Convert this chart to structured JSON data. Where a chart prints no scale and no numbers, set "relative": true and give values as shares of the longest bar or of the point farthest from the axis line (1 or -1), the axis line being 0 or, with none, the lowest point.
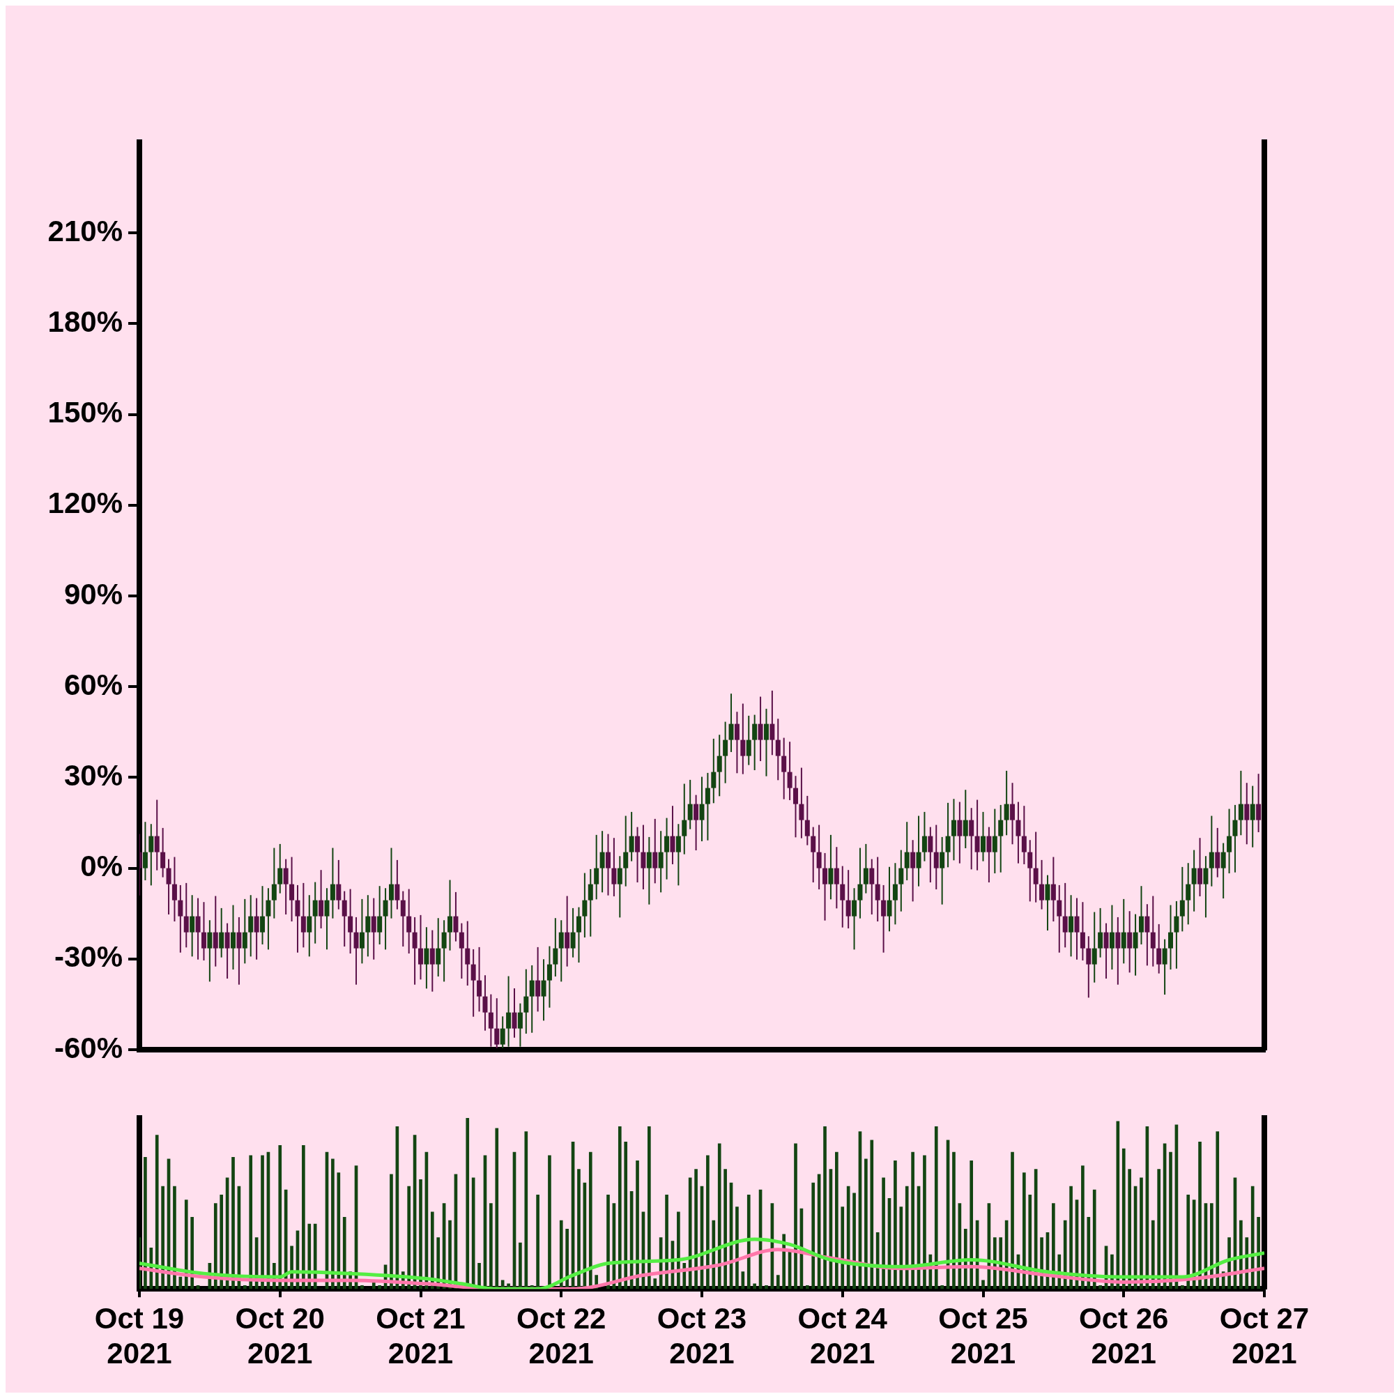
{
  "chart_data": [
    {
      "type": "candlestick",
      "tick_labels": "y",
      "xlim": [
        "2021-10-19",
        "2021-10-27"
      ],
      "ylim": [
        -60,
        240
      ],
      "yticks": [
        {
          "value": -60,
          "label": "-60%"
        },
        {
          "value": -30,
          "label": "-30%"
        },
        {
          "value": 0,
          "label": "0%"
        },
        {
          "value": 30,
          "label": "30%"
        },
        {
          "value": 60,
          "label": "60%"
        },
        {
          "value": 90,
          "label": "90%"
        },
        {
          "value": 120,
          "label": "120%"
        },
        {
          "value": 150,
          "label": "150%"
        },
        {
          "value": 180,
          "label": "180%"
        },
        {
          "value": 210,
          "label": "210%"
        }
      ],
      "x": [
        "2021-10-19T00:00",
        "2021-10-19T01:00",
        "2021-10-19T02:00",
        "2021-10-19T03:00",
        "2021-10-19T04:00",
        "2021-10-19T05:00",
        "2021-10-19T06:00",
        "2021-10-19T07:00",
        "2021-10-19T08:00",
        "2021-10-19T09:00",
        "2021-10-19T10:00",
        "2021-10-19T11:00",
        "2021-10-19T12:00",
        "2021-10-19T13:00",
        "2021-10-19T14:00",
        "2021-10-19T15:00",
        "2021-10-19T16:00",
        "2021-10-19T17:00",
        "2021-10-19T18:00",
        "2021-10-19T19:00",
        "2021-10-19T20:00",
        "2021-10-19T21:00",
        "2021-10-19T22:00",
        "2021-10-19T23:00",
        "2021-10-20T00:00",
        "2021-10-20T01:00",
        "2021-10-20T02:00",
        "2021-10-20T03:00",
        "2021-10-20T04:00",
        "2021-10-20T05:00",
        "2021-10-20T06:00",
        "2021-10-20T07:00",
        "2021-10-20T08:00",
        "2021-10-20T09:00",
        "2021-10-20T10:00",
        "2021-10-20T11:00",
        "2021-10-20T12:00",
        "2021-10-20T13:00",
        "2021-10-20T14:00",
        "2021-10-20T15:00",
        "2021-10-20T16:00",
        "2021-10-20T17:00",
        "2021-10-20T18:00",
        "2021-10-20T19:00",
        "2021-10-20T20:00",
        "2021-10-20T21:00",
        "2021-10-20T22:00",
        "2021-10-20T23:00",
        "2021-10-21T00:00",
        "2021-10-21T01:00",
        "2021-10-21T02:00",
        "2021-10-21T03:00",
        "2021-10-21T04:00",
        "2021-10-21T05:00",
        "2021-10-21T06:00",
        "2021-10-21T07:00",
        "2021-10-21T08:00",
        "2021-10-21T09:00",
        "2021-10-21T10:00",
        "2021-10-21T11:00",
        "2021-10-21T12:00",
        "2021-10-21T13:00",
        "2021-10-21T14:00",
        "2021-10-21T15:00",
        "2021-10-21T16:00",
        "2021-10-21T17:00",
        "2021-10-21T18:00",
        "2021-10-21T19:00",
        "2021-10-21T20:00",
        "2021-10-21T21:00",
        "2021-10-21T22:00",
        "2021-10-21T23:00",
        "2021-10-22T00:00",
        "2021-10-22T01:00",
        "2021-10-22T02:00",
        "2021-10-22T03:00",
        "2021-10-22T04:00",
        "2021-10-22T05:00",
        "2021-10-22T06:00",
        "2021-10-22T07:00",
        "2021-10-22T08:00",
        "2021-10-22T09:00",
        "2021-10-22T10:00",
        "2021-10-22T11:00",
        "2021-10-22T12:00",
        "2021-10-22T13:00",
        "2021-10-22T14:00",
        "2021-10-22T15:00",
        "2021-10-22T16:00",
        "2021-10-22T17:00",
        "2021-10-22T18:00",
        "2021-10-22T19:00",
        "2021-10-22T20:00",
        "2021-10-22T21:00",
        "2021-10-22T22:00",
        "2021-10-22T23:00",
        "2021-10-23T00:00",
        "2021-10-23T01:00",
        "2021-10-23T02:00",
        "2021-10-23T03:00",
        "2021-10-23T04:00",
        "2021-10-23T05:00",
        "2021-10-23T06:00",
        "2021-10-23T07:00",
        "2021-10-23T08:00",
        "2021-10-23T09:00",
        "2021-10-23T10:00",
        "2021-10-23T11:00",
        "2021-10-23T12:00",
        "2021-10-23T13:00",
        "2021-10-23T14:00",
        "2021-10-23T15:00",
        "2021-10-23T16:00",
        "2021-10-23T17:00",
        "2021-10-23T18:00",
        "2021-10-23T19:00",
        "2021-10-23T20:00",
        "2021-10-23T21:00",
        "2021-10-23T22:00",
        "2021-10-23T23:00",
        "2021-10-24T00:00",
        "2021-10-24T01:00",
        "2021-10-24T02:00",
        "2021-10-24T03:00",
        "2021-10-24T04:00",
        "2021-10-24T05:00",
        "2021-10-24T06:00",
        "2021-10-24T07:00",
        "2021-10-24T08:00",
        "2021-10-24T09:00",
        "2021-10-24T10:00",
        "2021-10-24T11:00",
        "2021-10-24T12:00",
        "2021-10-24T13:00",
        "2021-10-24T14:00",
        "2021-10-24T15:00",
        "2021-10-24T16:00",
        "2021-10-24T17:00",
        "2021-10-24T18:00",
        "2021-10-24T19:00",
        "2021-10-24T20:00",
        "2021-10-24T21:00",
        "2021-10-24T22:00",
        "2021-10-24T23:00",
        "2021-10-25T00:00",
        "2021-10-25T01:00",
        "2021-10-25T02:00",
        "2021-10-25T03:00",
        "2021-10-25T04:00",
        "2021-10-25T05:00",
        "2021-10-25T06:00",
        "2021-10-25T07:00",
        "2021-10-25T08:00",
        "2021-10-25T09:00",
        "2021-10-25T10:00",
        "2021-10-25T11:00",
        "2021-10-25T12:00",
        "2021-10-25T13:00",
        "2021-10-25T14:00",
        "2021-10-25T15:00",
        "2021-10-25T16:00",
        "2021-10-25T17:00",
        "2021-10-25T18:00",
        "2021-10-25T19:00",
        "2021-10-25T20:00",
        "2021-10-25T21:00",
        "2021-10-25T22:00",
        "2021-10-25T23:00",
        "2021-10-26T00:00",
        "2021-10-26T01:00",
        "2021-10-26T02:00",
        "2021-10-26T03:00",
        "2021-10-26T04:00",
        "2021-10-26T05:00",
        "2021-10-26T06:00",
        "2021-10-26T07:00",
        "2021-10-26T08:00",
        "2021-10-26T09:00",
        "2021-10-26T10:00",
        "2021-10-26T11:00",
        "2021-10-26T12:00",
        "2021-10-26T13:00",
        "2021-10-26T14:00",
        "2021-10-26T15:00",
        "2021-10-26T16:00",
        "2021-10-26T17:00",
        "2021-10-26T18:00",
        "2021-10-26T19:00",
        "2021-10-26T20:00",
        "2021-10-26T21:00",
        "2021-10-26T22:00",
        "2021-10-26T23:00"
      ],
      "ohlc": [
        [
          5.3,
          11.3,
          -9,
          0
        ],
        [
          0,
          15.3,
          -4,
          5.3
        ],
        [
          5.3,
          14.6,
          -5.7,
          10.6
        ],
        [
          10.6,
          22.6,
          -0.7,
          5.3
        ],
        [
          5.3,
          13.3,
          -3,
          0
        ],
        [
          0,
          3,
          -15.3,
          -5.3
        ],
        [
          -5.3,
          3.7,
          -17.6,
          -10.6
        ],
        [
          -10.6,
          -5.6,
          -27.9,
          -15.9
        ],
        [
          -15.9,
          -4.9,
          -26.2,
          -21.2
        ],
        [
          -21.2,
          -8.9,
          -29.2,
          -15.9
        ],
        [
          -15.9,
          -9.9,
          -30.2,
          -21.2
        ],
        [
          -21.2,
          -11.2,
          -30.5,
          -26.5
        ],
        [
          -26.5,
          -17.2,
          -37.5,
          -21.2
        ],
        [
          -21.2,
          -9.2,
          -32.5,
          -26.5
        ],
        [
          -26.5,
          -13.2,
          -29.5,
          -21.2
        ],
        [
          -21.2,
          -18.2,
          -36.5,
          -26.5
        ],
        [
          -26.5,
          -12.2,
          -33.5,
          -21.2
        ],
        [
          -21.2,
          -16.2,
          -38.5,
          -26.5
        ],
        [
          -26.5,
          -10.2,
          -31.5,
          -21.2
        ],
        [
          -21.2,
          -8.9,
          -29.2,
          -15.9
        ],
        [
          -15.9,
          -9.9,
          -30.2,
          -21.2
        ],
        [
          -21.2,
          -5.9,
          -25.2,
          -15.9
        ],
        [
          -15.9,
          -6.6,
          -26.9,
          -10.6
        ],
        [
          -10.6,
          6.7,
          -16.6,
          -5.3
        ],
        [
          -5.3,
          8,
          -8.3,
          0
        ],
        [
          0,
          3,
          -15.3,
          -5.3
        ],
        [
          -5.3,
          3.7,
          -17.6,
          -10.6
        ],
        [
          -10.6,
          -5.6,
          -27.9,
          -15.9
        ],
        [
          -15.9,
          -4.9,
          -26.2,
          -21.2
        ],
        [
          -21.2,
          -8.9,
          -29.2,
          -15.9
        ],
        [
          -15.9,
          -4.6,
          -24.9,
          -10.6
        ],
        [
          -10.6,
          -0.6,
          -19.9,
          -15.9
        ],
        [
          -15.9,
          -6.6,
          -26.9,
          -10.6
        ],
        [
          -10.6,
          6.7,
          -16.6,
          -5.3
        ],
        [
          -5.3,
          2.7,
          -13.6,
          -10.6
        ],
        [
          -10.6,
          -7.6,
          -25.9,
          -15.9
        ],
        [
          -15.9,
          -6.9,
          -28.2,
          -21.2
        ],
        [
          -21.2,
          -16.2,
          -38.5,
          -26.5
        ],
        [
          -26.5,
          -10.2,
          -31.5,
          -21.2
        ],
        [
          -21.2,
          -8.9,
          -29.2,
          -15.9
        ],
        [
          -15.9,
          -9.9,
          -30.2,
          -21.2
        ],
        [
          -21.2,
          -5.9,
          -25.2,
          -15.9
        ],
        [
          -15.9,
          -6.6,
          -26.9,
          -10.6
        ],
        [
          -10.6,
          6.7,
          -16.6,
          -5.3
        ],
        [
          -5.3,
          2.7,
          -13.6,
          -10.6
        ],
        [
          -10.6,
          -7.6,
          -25.9,
          -15.9
        ],
        [
          -15.9,
          -6.9,
          -28.2,
          -21.2
        ],
        [
          -21.2,
          -16.2,
          -38.5,
          -26.5
        ],
        [
          -26.5,
          -15.5,
          -36.8,
          -31.8
        ],
        [
          -31.8,
          -19.5,
          -39.8,
          -26.5
        ],
        [
          -26.5,
          -20.5,
          -40.8,
          -31.8
        ],
        [
          -31.8,
          -16.5,
          -35.8,
          -26.5
        ],
        [
          -26.5,
          -17.2,
          -37.5,
          -21.2
        ],
        [
          -21.2,
          -3.9,
          -27.2,
          -15.9
        ],
        [
          -15.9,
          -7.9,
          -24.2,
          -21.2
        ],
        [
          -21.2,
          -18.2,
          -36.5,
          -26.5
        ],
        [
          -26.5,
          -17.5,
          -38.8,
          -31.8
        ],
        [
          -31.8,
          -26.8,
          -49.1,
          -37.1
        ],
        [
          -37.1,
          -26.1,
          -47.4,
          -42.4
        ],
        [
          -42.4,
          -35.4,
          -53.7,
          -47.7
        ],
        [
          -47.7,
          -41.7,
          -59,
          -53
        ],
        [
          -53,
          -43,
          -59.5,
          -58.3
        ],
        [
          -58.3,
          -49,
          -59.5,
          -53
        ],
        [
          -53,
          -35.7,
          -59,
          -47.7
        ],
        [
          -47.7,
          -39.7,
          -56,
          -53
        ],
        [
          -53,
          -44.7,
          -59,
          -47.7
        ],
        [
          -47.7,
          -33.4,
          -54.7,
          -42.4
        ],
        [
          -42.4,
          -32.1,
          -54.4,
          -37.1
        ],
        [
          -37.1,
          -26.1,
          -47.4,
          -42.4
        ],
        [
          -42.4,
          -30.1,
          -50.4,
          -37.1
        ],
        [
          -37.1,
          -25.8,
          -46.1,
          -31.8
        ],
        [
          -31.8,
          -16.5,
          -35.8,
          -26.5
        ],
        [
          -26.5,
          -17.2,
          -37.5,
          -21.2
        ],
        [
          -21.2,
          -9.2,
          -32.5,
          -26.5
        ],
        [
          -26.5,
          -13.2,
          -29.5,
          -21.2
        ],
        [
          -21.2,
          -12.9,
          -31.2,
          -15.9
        ],
        [
          -15.9,
          -1.6,
          -22.9,
          -10.6
        ],
        [
          -10.6,
          -0.3,
          -22.6,
          -5.3
        ],
        [
          -5.3,
          11,
          -10.3,
          0
        ],
        [
          0,
          12.3,
          -8,
          5.3
        ],
        [
          5.3,
          11.3,
          -9,
          0
        ],
        [
          0,
          10,
          -9.3,
          -5.3
        ],
        [
          -5.3,
          4,
          -16.3,
          0
        ],
        [
          0,
          17.3,
          -6,
          5.3
        ],
        [
          5.3,
          18.6,
          2.3,
          10.6
        ],
        [
          10.6,
          13.6,
          -4.7,
          5.3
        ],
        [
          5.3,
          14.3,
          -7,
          0
        ],
        [
          0,
          10.3,
          -12,
          5.3
        ],
        [
          5.3,
          16.3,
          -5,
          0
        ],
        [
          0,
          12.3,
          -8,
          5.3
        ],
        [
          5.3,
          16.6,
          -3.7,
          10.6
        ],
        [
          10.6,
          20.6,
          1.3,
          5.3
        ],
        [
          5.3,
          14.6,
          -5.7,
          10.6
        ],
        [
          10.6,
          27.9,
          4.6,
          15.9
        ],
        [
          15.9,
          29.2,
          12.9,
          21.2
        ],
        [
          21.2,
          24.2,
          5.9,
          15.9
        ],
        [
          15.9,
          30.2,
          8.9,
          21.2
        ],
        [
          21.2,
          31.5,
          9.2,
          26.5
        ],
        [
          26.5,
          42.8,
          21.5,
          31.8
        ],
        [
          31.8,
          44.1,
          23.8,
          37.1
        ],
        [
          37.1,
          48.4,
          28.1,
          42.4
        ],
        [
          42.4,
          57.7,
          38.4,
          47.7
        ],
        [
          47.7,
          51.7,
          31.4,
          42.4
        ],
        [
          42.4,
          54.4,
          31.1,
          37.1
        ],
        [
          37.1,
          50.4,
          34.1,
          42.4
        ],
        [
          42.4,
          50.7,
          32.4,
          47.7
        ],
        [
          47.7,
          56.7,
          35.4,
          42.4
        ],
        [
          42.4,
          52.7,
          30.4,
          47.7
        ],
        [
          47.7,
          58.7,
          37.4,
          42.4
        ],
        [
          42.4,
          49.4,
          29.1,
          37.1
        ],
        [
          37.1,
          43.1,
          22.8,
          31.8
        ],
        [
          31.8,
          41.8,
          22.5,
          26.5
        ],
        [
          26.5,
          30.5,
          10.2,
          21.2
        ],
        [
          21.2,
          33.2,
          9.9,
          15.9
        ],
        [
          15.9,
          23.9,
          7.6,
          10.6
        ],
        [
          10.6,
          13.6,
          -4.7,
          5.3
        ],
        [
          5.3,
          14.3,
          -7,
          0
        ],
        [
          0,
          5,
          -17.3,
          -5.3
        ],
        [
          -5.3,
          11,
          -10.3,
          0
        ],
        [
          0,
          7,
          -13.3,
          -5.3
        ],
        [
          -5.3,
          0.7,
          -19.6,
          -10.6
        ],
        [
          -10.6,
          -0.6,
          -19.9,
          -15.9
        ],
        [
          -15.9,
          -6.6,
          -26.9,
          -10.6
        ],
        [
          -10.6,
          6.7,
          -16.6,
          -5.3
        ],
        [
          -5.3,
          8,
          -8.3,
          0
        ],
        [
          0,
          3,
          -15.3,
          -5.3
        ],
        [
          -5.3,
          3.7,
          -17.6,
          -10.6
        ],
        [
          -10.6,
          -5.6,
          -27.9,
          -15.9
        ],
        [
          -15.9,
          0.4,
          -20.9,
          -10.6
        ],
        [
          -10.6,
          1.7,
          -18.6,
          -5.3
        ],
        [
          -5.3,
          6,
          -14.3,
          0
        ],
        [
          0,
          15.3,
          -4,
          5.3
        ],
        [
          5.3,
          9.3,
          -11,
          0
        ],
        [
          0,
          17.3,
          -6,
          5.3
        ],
        [
          5.3,
          18.6,
          2.3,
          10.6
        ],
        [
          10.6,
          13.6,
          -4.7,
          5.3
        ],
        [
          5.3,
          14.3,
          -7,
          0
        ],
        [
          0,
          10.3,
          -12,
          5.3
        ],
        [
          5.3,
          21.6,
          0.3,
          10.6
        ],
        [
          10.6,
          22.9,
          2.6,
          15.9
        ],
        [
          15.9,
          21.9,
          1.6,
          10.6
        ],
        [
          10.6,
          25.9,
          6.6,
          15.9
        ],
        [
          15.9,
          19.9,
          -0.4,
          10.6
        ],
        [
          10.6,
          22.6,
          -0.7,
          5.3
        ],
        [
          5.3,
          18.6,
          2.3,
          10.6
        ],
        [
          10.6,
          13.6,
          -4.7,
          5.3
        ],
        [
          5.3,
          19.6,
          -1.7,
          10.6
        ],
        [
          10.6,
          20.9,
          -1.4,
          15.9
        ],
        [
          15.9,
          32.2,
          10.9,
          21.2
        ],
        [
          21.2,
          28.2,
          7.9,
          15.9
        ],
        [
          15.9,
          21.9,
          1.6,
          10.6
        ],
        [
          10.6,
          20.6,
          1.3,
          5.3
        ],
        [
          5.3,
          9.3,
          -11,
          0
        ],
        [
          0,
          12,
          -11.3,
          -5.3
        ],
        [
          -5.3,
          2.7,
          -13.6,
          -10.6
        ],
        [
          -10.6,
          -2.3,
          -20.6,
          -5.3
        ],
        [
          -5.3,
          3.7,
          -17.6,
          -10.6
        ],
        [
          -10.6,
          -5.6,
          -27.9,
          -15.9
        ],
        [
          -15.9,
          -4.9,
          -26.2,
          -21.2
        ],
        [
          -21.2,
          -8.9,
          -29.2,
          -15.9
        ],
        [
          -15.9,
          -9.9,
          -30.2,
          -21.2
        ],
        [
          -21.2,
          -11.2,
          -30.5,
          -26.5
        ],
        [
          -26.5,
          -22.5,
          -42.8,
          -31.8
        ],
        [
          -31.8,
          -14.5,
          -37.8,
          -26.5
        ],
        [
          -26.5,
          -13.2,
          -29.5,
          -21.2
        ],
        [
          -21.2,
          -18.2,
          -36.5,
          -26.5
        ],
        [
          -26.5,
          -12.2,
          -33.5,
          -21.2
        ],
        [
          -21.2,
          -16.2,
          -38.5,
          -26.5
        ],
        [
          -26.5,
          -10.2,
          -31.5,
          -21.2
        ],
        [
          -21.2,
          -14.2,
          -34.5,
          -26.5
        ],
        [
          -26.5,
          -15.2,
          -35.5,
          -21.2
        ],
        [
          -21.2,
          -5.9,
          -25.2,
          -15.9
        ],
        [
          -15.9,
          -11.9,
          -32.2,
          -21.2
        ],
        [
          -21.2,
          -9.2,
          -32.5,
          -26.5
        ],
        [
          -26.5,
          -18.5,
          -34.8,
          -31.8
        ],
        [
          -31.8,
          -23.5,
          -41.8,
          -26.5
        ],
        [
          -26.5,
          -12.2,
          -33.5,
          -21.2
        ],
        [
          -21.2,
          -10.9,
          -33.2,
          -15.9
        ],
        [
          -15.9,
          0.4,
          -20.9,
          -10.6
        ],
        [
          -10.6,
          1.7,
          -18.6,
          -5.3
        ],
        [
          -5.3,
          6,
          -14.3,
          0
        ],
        [
          0,
          10,
          -9.3,
          -5.3
        ],
        [
          -5.3,
          4,
          -16.3,
          0
        ],
        [
          0,
          17.3,
          -6,
          5.3
        ],
        [
          5.3,
          13.3,
          -3,
          0
        ],
        [
          0,
          8.3,
          -10,
          5.3
        ],
        [
          5.3,
          19.6,
          -1.7,
          10.6
        ],
        [
          10.6,
          20.9,
          -1.4,
          15.9
        ],
        [
          15.9,
          32.2,
          10.9,
          21.2
        ],
        [
          21.2,
          28.2,
          7.9,
          15.9
        ],
        [
          15.9,
          27.2,
          6.9,
          21.2
        ],
        [
          21.2,
          31.2,
          11.9,
          15.9
        ]
      ],
      "colors": [
        "#5a1048",
        "#134512",
        "#134512",
        "#5a1048",
        "#5a1048",
        "#5a1048",
        "#5a1048",
        "#5a1048",
        "#5a1048",
        "#134512",
        "#5a1048",
        "#5a1048",
        "#134512",
        "#5a1048",
        "#134512",
        "#5a1048",
        "#134512",
        "#5a1048",
        "#134512",
        "#134512",
        "#5a1048",
        "#134512",
        "#134512",
        "#134512",
        "#134512",
        "#5a1048",
        "#5a1048",
        "#5a1048",
        "#5a1048",
        "#134512",
        "#134512",
        "#5a1048",
        "#134512",
        "#134512",
        "#5a1048",
        "#5a1048",
        "#5a1048",
        "#5a1048",
        "#134512",
        "#134512",
        "#5a1048",
        "#134512",
        "#134512",
        "#134512",
        "#5a1048",
        "#5a1048",
        "#5a1048",
        "#5a1048",
        "#5a1048",
        "#134512",
        "#5a1048",
        "#134512",
        "#134512",
        "#134512",
        "#5a1048",
        "#5a1048",
        "#5a1048",
        "#5a1048",
        "#5a1048",
        "#5a1048",
        "#5a1048",
        "#5a1048",
        "#134512",
        "#134512",
        "#5a1048",
        "#134512",
        "#134512",
        "#134512",
        "#5a1048",
        "#134512",
        "#134512",
        "#134512",
        "#134512",
        "#5a1048",
        "#134512",
        "#134512",
        "#134512",
        "#134512",
        "#134512",
        "#134512",
        "#5a1048",
        "#5a1048",
        "#134512",
        "#134512",
        "#134512",
        "#5a1048",
        "#5a1048",
        "#134512",
        "#5a1048",
        "#134512",
        "#134512",
        "#5a1048",
        "#134512",
        "#134512",
        "#134512",
        "#5a1048",
        "#134512",
        "#134512",
        "#134512",
        "#134512",
        "#134512",
        "#134512",
        "#5a1048",
        "#5a1048",
        "#134512",
        "#134512",
        "#5a1048",
        "#134512",
        "#5a1048",
        "#5a1048",
        "#5a1048",
        "#5a1048",
        "#5a1048",
        "#5a1048",
        "#5a1048",
        "#5a1048",
        "#5a1048",
        "#5a1048",
        "#134512",
        "#5a1048",
        "#5a1048",
        "#5a1048",
        "#134512",
        "#134512",
        "#134512",
        "#5a1048",
        "#5a1048",
        "#5a1048",
        "#134512",
        "#134512",
        "#134512",
        "#134512",
        "#5a1048",
        "#134512",
        "#134512",
        "#5a1048",
        "#5a1048",
        "#134512",
        "#134512",
        "#134512",
        "#5a1048",
        "#134512",
        "#5a1048",
        "#5a1048",
        "#134512",
        "#5a1048",
        "#134512",
        "#134512",
        "#134512",
        "#5a1048",
        "#5a1048",
        "#5a1048",
        "#5a1048",
        "#5a1048",
        "#5a1048",
        "#134512",
        "#5a1048",
        "#5a1048",
        "#5a1048",
        "#134512",
        "#5a1048",
        "#5a1048",
        "#5a1048",
        "#134512",
        "#134512",
        "#5a1048",
        "#134512",
        "#5a1048",
        "#134512",
        "#5a1048",
        "#134512",
        "#134512",
        "#5a1048",
        "#5a1048",
        "#5a1048",
        "#134512",
        "#134512",
        "#134512",
        "#134512",
        "#134512",
        "#134512",
        "#5a1048",
        "#134512",
        "#134512",
        "#5a1048",
        "#134512",
        "#134512",
        "#134512",
        "#134512",
        "#5a1048",
        "#134512",
        "#5a1048"
      ]
    },
    {
      "type": "bar",
      "relative": true,
      "tick_labels": "x",
      "xlim": [
        "2021-10-19",
        "2021-10-27"
      ],
      "xticks": [
        {
          "value": "2021-10-19",
          "label": "Oct 19\n2021"
        },
        {
          "value": "2021-10-20",
          "label": "Oct 20\n2021"
        },
        {
          "value": "2021-10-21",
          "label": "Oct 21\n2021"
        },
        {
          "value": "2021-10-22",
          "label": "Oct 22\n2021"
        },
        {
          "value": "2021-10-23",
          "label": "Oct 23\n2021"
        },
        {
          "value": "2021-10-24",
          "label": "Oct 24\n2021"
        },
        {
          "value": "2021-10-25",
          "label": "Oct 25\n2021"
        },
        {
          "value": "2021-10-26",
          "label": "Oct 26\n2021"
        },
        {
          "value": "2021-10-27",
          "label": "Oct 27\n2021"
        }
      ],
      "x": [
        "2021-10-19T00:00",
        "2021-10-19T01:00",
        "2021-10-19T02:00",
        "2021-10-19T03:00",
        "2021-10-19T04:00",
        "2021-10-19T05:00",
        "2021-10-19T06:00",
        "2021-10-19T07:00",
        "2021-10-19T08:00",
        "2021-10-19T09:00",
        "2021-10-19T10:00",
        "2021-10-19T11:00",
        "2021-10-19T12:00",
        "2021-10-19T13:00",
        "2021-10-19T14:00",
        "2021-10-19T15:00",
        "2021-10-19T16:00",
        "2021-10-19T17:00",
        "2021-10-19T18:00",
        "2021-10-19T19:00",
        "2021-10-19T20:00",
        "2021-10-19T21:00",
        "2021-10-19T22:00",
        "2021-10-19T23:00",
        "2021-10-20T00:00",
        "2021-10-20T01:00",
        "2021-10-20T02:00",
        "2021-10-20T03:00",
        "2021-10-20T04:00",
        "2021-10-20T05:00",
        "2021-10-20T06:00",
        "2021-10-20T07:00",
        "2021-10-20T08:00",
        "2021-10-20T09:00",
        "2021-10-20T10:00",
        "2021-10-20T11:00",
        "2021-10-20T12:00",
        "2021-10-20T13:00",
        "2021-10-20T14:00",
        "2021-10-20T15:00",
        "2021-10-20T16:00",
        "2021-10-20T17:00",
        "2021-10-20T18:00",
        "2021-10-20T19:00",
        "2021-10-20T20:00",
        "2021-10-20T21:00",
        "2021-10-20T22:00",
        "2021-10-20T23:00",
        "2021-10-21T00:00",
        "2021-10-21T01:00",
        "2021-10-21T02:00",
        "2021-10-21T03:00",
        "2021-10-21T04:00",
        "2021-10-21T05:00",
        "2021-10-21T06:00",
        "2021-10-21T07:00",
        "2021-10-21T08:00",
        "2021-10-21T09:00",
        "2021-10-21T10:00",
        "2021-10-21T11:00",
        "2021-10-21T12:00",
        "2021-10-21T13:00",
        "2021-10-21T14:00",
        "2021-10-21T15:00",
        "2021-10-21T16:00",
        "2021-10-21T17:00",
        "2021-10-21T18:00",
        "2021-10-21T19:00",
        "2021-10-21T20:00",
        "2021-10-21T21:00",
        "2021-10-21T22:00",
        "2021-10-21T23:00",
        "2021-10-22T00:00",
        "2021-10-22T01:00",
        "2021-10-22T02:00",
        "2021-10-22T03:00",
        "2021-10-22T04:00",
        "2021-10-22T05:00",
        "2021-10-22T06:00",
        "2021-10-22T07:00",
        "2021-10-22T08:00",
        "2021-10-22T09:00",
        "2021-10-22T10:00",
        "2021-10-22T11:00",
        "2021-10-22T12:00",
        "2021-10-22T13:00",
        "2021-10-22T14:00",
        "2021-10-22T15:00",
        "2021-10-22T16:00",
        "2021-10-22T17:00",
        "2021-10-22T18:00",
        "2021-10-22T19:00",
        "2021-10-22T20:00",
        "2021-10-22T21:00",
        "2021-10-22T22:00",
        "2021-10-22T23:00",
        "2021-10-23T00:00",
        "2021-10-23T01:00",
        "2021-10-23T02:00",
        "2021-10-23T03:00",
        "2021-10-23T04:00",
        "2021-10-23T05:00",
        "2021-10-23T06:00",
        "2021-10-23T07:00",
        "2021-10-23T08:00",
        "2021-10-23T09:00",
        "2021-10-23T10:00",
        "2021-10-23T11:00",
        "2021-10-23T12:00",
        "2021-10-23T13:00",
        "2021-10-23T14:00",
        "2021-10-23T15:00",
        "2021-10-23T16:00",
        "2021-10-23T17:00",
        "2021-10-23T18:00",
        "2021-10-23T19:00",
        "2021-10-23T20:00",
        "2021-10-23T21:00",
        "2021-10-23T22:00",
        "2021-10-23T23:00",
        "2021-10-24T00:00",
        "2021-10-24T01:00",
        "2021-10-24T02:00",
        "2021-10-24T03:00",
        "2021-10-24T04:00",
        "2021-10-24T05:00",
        "2021-10-24T06:00",
        "2021-10-24T07:00",
        "2021-10-24T08:00",
        "2021-10-24T09:00",
        "2021-10-24T10:00",
        "2021-10-24T11:00",
        "2021-10-24T12:00",
        "2021-10-24T13:00",
        "2021-10-24T14:00",
        "2021-10-24T15:00",
        "2021-10-24T16:00",
        "2021-10-24T17:00",
        "2021-10-24T18:00",
        "2021-10-24T19:00",
        "2021-10-24T20:00",
        "2021-10-24T21:00",
        "2021-10-24T22:00",
        "2021-10-24T23:00",
        "2021-10-25T00:00",
        "2021-10-25T01:00",
        "2021-10-25T02:00",
        "2021-10-25T03:00",
        "2021-10-25T04:00",
        "2021-10-25T05:00",
        "2021-10-25T06:00",
        "2021-10-25T07:00",
        "2021-10-25T08:00",
        "2021-10-25T09:00",
        "2021-10-25T10:00",
        "2021-10-25T11:00",
        "2021-10-25T12:00",
        "2021-10-25T13:00",
        "2021-10-25T14:00",
        "2021-10-25T15:00",
        "2021-10-25T16:00",
        "2021-10-25T17:00",
        "2021-10-25T18:00",
        "2021-10-25T19:00",
        "2021-10-25T20:00",
        "2021-10-25T21:00",
        "2021-10-25T22:00",
        "2021-10-25T23:00",
        "2021-10-26T00:00",
        "2021-10-26T01:00",
        "2021-10-26T02:00",
        "2021-10-26T03:00",
        "2021-10-26T04:00",
        "2021-10-26T05:00",
        "2021-10-26T06:00",
        "2021-10-26T07:00",
        "2021-10-26T08:00",
        "2021-10-26T09:00",
        "2021-10-26T10:00",
        "2021-10-26T11:00",
        "2021-10-26T12:00",
        "2021-10-26T13:00",
        "2021-10-26T14:00",
        "2021-10-26T15:00",
        "2021-10-26T16:00",
        "2021-10-26T17:00",
        "2021-10-26T18:00",
        "2021-10-26T19:00",
        "2021-10-26T20:00",
        "2021-10-26T21:00",
        "2021-10-26T22:00",
        "2021-10-26T23:00"
      ],
      "series": [
        {
          "type": "bar",
          "color": "#134512",
          "values": [
            0.3,
            0.77,
            0.24,
            0.9,
            0.6,
            0.76,
            0.6,
            0.07,
            0.52,
            0.42,
            0.02,
            0,
            0.15,
            0.5,
            0.55,
            0.65,
            0.77,
            0.6,
            0.02,
            0.78,
            0.3,
            0.78,
            0.8,
            0.15,
            0.84,
            0.58,
            0.25,
            0.34,
            0.84,
            0.38,
            0.38,
            0,
            0.8,
            0.76,
            0.68,
            0.42,
            0.1,
            0.72,
            0.02,
            0,
            0.05,
            0.02,
            0.14,
            0.67,
            0.95,
            0.1,
            0.6,
            0.9,
            0.64,
            0.8,
            0.45,
            0.3,
            0.5,
            0.4,
            0.67,
            null,
            1,
            0.65,
            0.15,
            0.78,
            0.5,
            0.94,
            0.05,
            0.03,
            0.8,
            0.27,
            0.92,
            0.02,
            0.55,
            null,
            0.78,
            null,
            0.4,
            0.35,
            0.86,
            0.7,
            0.62,
            0.8,
            0.08,
            null,
            0.55,
            0.5,
            0.95,
            0.86,
            0.57,
            0.75,
            0.45,
            0.95,
            0.06,
            0.3,
            0.55,
            0.28,
            0.45,
            0.15,
            0.65,
            0.7,
            0.6,
            0.78,
            0.4,
            0.85,
            0.7,
            0.62,
            0.48,
            0.1,
            0.55,
            0.03,
            0.58,
            0.02,
            0.5,
            0.08,
            0.32,
            0.22,
            0.85,
            0.47,
            0.02,
            0.62,
            0.67,
            0.95,
            0.7,
            0.8,
            0.48,
            0.6,
            0.56,
            0.92,
            0.76,
            0.87,
            0.33,
            0.65,
            0.53,
            0.75,
            0.48,
            0.6,
            0.8,
            0.6,
            0.78,
            0.2,
            0.95,
            0.02,
            0.87,
            0.8,
            0.5,
            0.35,
            0.75,
            0.4,
            0.05,
            0.5,
            0.3,
            0.3,
            0.4,
            0.8,
            0.2,
            0.68,
            0.55,
            0.7,
            0.3,
            0.33,
            0.5,
            0.2,
            0.4,
            0.6,
            0.52,
            0.72,
            0.42,
            0.58,
            0.02,
            0.25,
            0.2,
            0.98,
            0.82,
            0.7,
            0.6,
            0.65,
            0.95,
            0.4,
            0.7,
            0.85,
            0.8,
            0.96,
            0.02,
            0.55,
            0.52,
            0.86,
            0.5,
            0.5,
            0.92,
            0.1,
            0.3,
            0.65,
            0.4,
            0.3,
            0.6,
            0.42
          ]
        },
        {
          "type": "line",
          "color": "#55ee44",
          "x": [
            "2021-10-19T00:00",
            "2021-10-19T11:00",
            "2021-10-20T00:00",
            "2021-10-20T02:00",
            "2021-10-20T12:00",
            "2021-10-21T01:00",
            "2021-10-21T07:00",
            "2021-10-21T13:00",
            "2021-10-21T20:00",
            "2021-10-22T02:00",
            "2021-10-22T08:00",
            "2021-10-22T20:00",
            "2021-10-23T09:00",
            "2021-10-23T15:00",
            "2021-10-23T22:00",
            "2021-10-24T10:00",
            "2021-10-24T22:00",
            "2021-10-25T11:00",
            "2021-10-26T00:00",
            "2021-10-26T10:00",
            "2021-10-26T18:00",
            "2021-10-27T00:00"
          ],
          "values": [
            0.15,
            0.09,
            0.07,
            0.1,
            0.09,
            0.06,
            0.03,
            0,
            0,
            0.08,
            0.15,
            0.17,
            0.29,
            0.26,
            0.17,
            0.13,
            0.17,
            0.1,
            0.07,
            0.07,
            0.17,
            0.21
          ]
        },
        {
          "type": "line",
          "color": "#ff77aa",
          "x": [
            "2021-10-19T00:00",
            "2021-10-19T11:00",
            "2021-10-20T00:00",
            "2021-10-20T12:00",
            "2021-10-21T01:00",
            "2021-10-21T13:00",
            "2021-10-22T02:00",
            "2021-10-22T14:00",
            "2021-10-23T03:00",
            "2021-10-23T13:00",
            "2021-10-23T22:00",
            "2021-10-24T10:00",
            "2021-10-24T22:00",
            "2021-10-25T11:00",
            "2021-10-26T00:00",
            "2021-10-26T12:00",
            "2021-10-27T00:00"
          ],
          "values": [
            0.12,
            0.07,
            0.05,
            0.05,
            0.03,
            0,
            0,
            0.08,
            0.14,
            0.23,
            0.18,
            0.12,
            0.13,
            0.08,
            0.04,
            0.06,
            0.12
          ]
        }
      ]
    }
  ]
}
